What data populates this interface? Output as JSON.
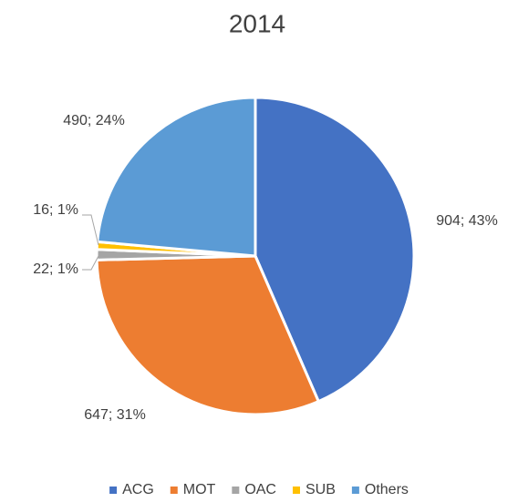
{
  "chart_data": {
    "type": "pie",
    "title": "2014",
    "categories": [
      "ACG",
      "MOT",
      "OAC",
      "SUB",
      "Others"
    ],
    "values": [
      904,
      647,
      22,
      16,
      490
    ],
    "value_labels": [
      "904; 43%",
      "647; 31%",
      "22; 1%",
      "16; 1%",
      "490; 24%"
    ],
    "colors": [
      "#4472c4",
      "#ed7d31",
      "#a5a5a5",
      "#ffc000",
      "#5b9bd5"
    ],
    "legend": "bottom"
  }
}
